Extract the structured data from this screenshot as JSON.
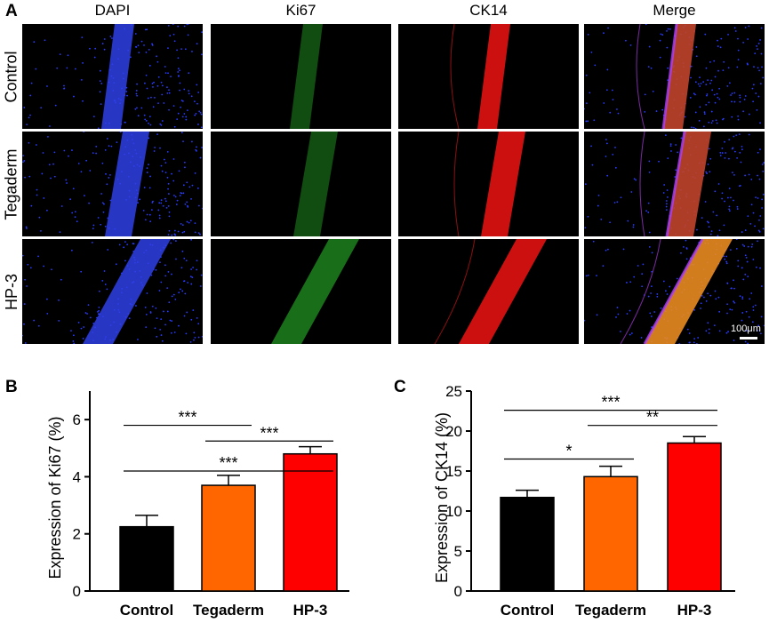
{
  "panel_a": {
    "letter": "A",
    "columns": [
      "DAPI",
      "Ki67",
      "CK14",
      "Merge"
    ],
    "rows": [
      "Control",
      "Tegaderm",
      "HP-3"
    ],
    "scale_bar_label": "100μm"
  },
  "chart_data": [
    {
      "panel": "B",
      "type": "bar",
      "categories": [
        "Control",
        "Tegaderm",
        "HP-3"
      ],
      "values": [
        2.25,
        3.7,
        4.8
      ],
      "errors": [
        0.4,
        0.35,
        0.25
      ],
      "colors": [
        "#000000",
        "#ff6600",
        "#ff0000"
      ],
      "ylabel": "Expression of Ki67 (%)",
      "ylim": [
        0,
        7
      ],
      "yticks": [
        "0",
        "2",
        "4",
        "6"
      ],
      "ytick_values": [
        0,
        2,
        4,
        6
      ],
      "significance": [
        {
          "from": 0,
          "to": 1,
          "label": "***",
          "level": 5.8
        },
        {
          "from": 1,
          "to": 2,
          "label": "***",
          "level": 5.25
        },
        {
          "from": 0,
          "to": 2,
          "label": "***",
          "level": 4.2
        }
      ]
    },
    {
      "panel": "C",
      "type": "bar",
      "categories": [
        "Control",
        "Tegaderm",
        "HP-3"
      ],
      "values": [
        11.7,
        14.3,
        18.5
      ],
      "errors": [
        0.9,
        1.3,
        0.8
      ],
      "colors": [
        "#000000",
        "#ff6600",
        "#ff0000"
      ],
      "ylabel": "Expression of CK14 (%)",
      "ylim": [
        0,
        25
      ],
      "yticks": [
        "0",
        "5",
        "10",
        "15",
        "20",
        "25"
      ],
      "ytick_values": [
        0,
        5,
        10,
        15,
        20,
        25
      ],
      "significance": [
        {
          "from": 0,
          "to": 1,
          "label": "*",
          "level": 16.5
        },
        {
          "from": 1,
          "to": 2,
          "label": "**",
          "level": 20.7
        },
        {
          "from": 0,
          "to": 2,
          "label": "***",
          "level": 22.6
        }
      ]
    }
  ]
}
